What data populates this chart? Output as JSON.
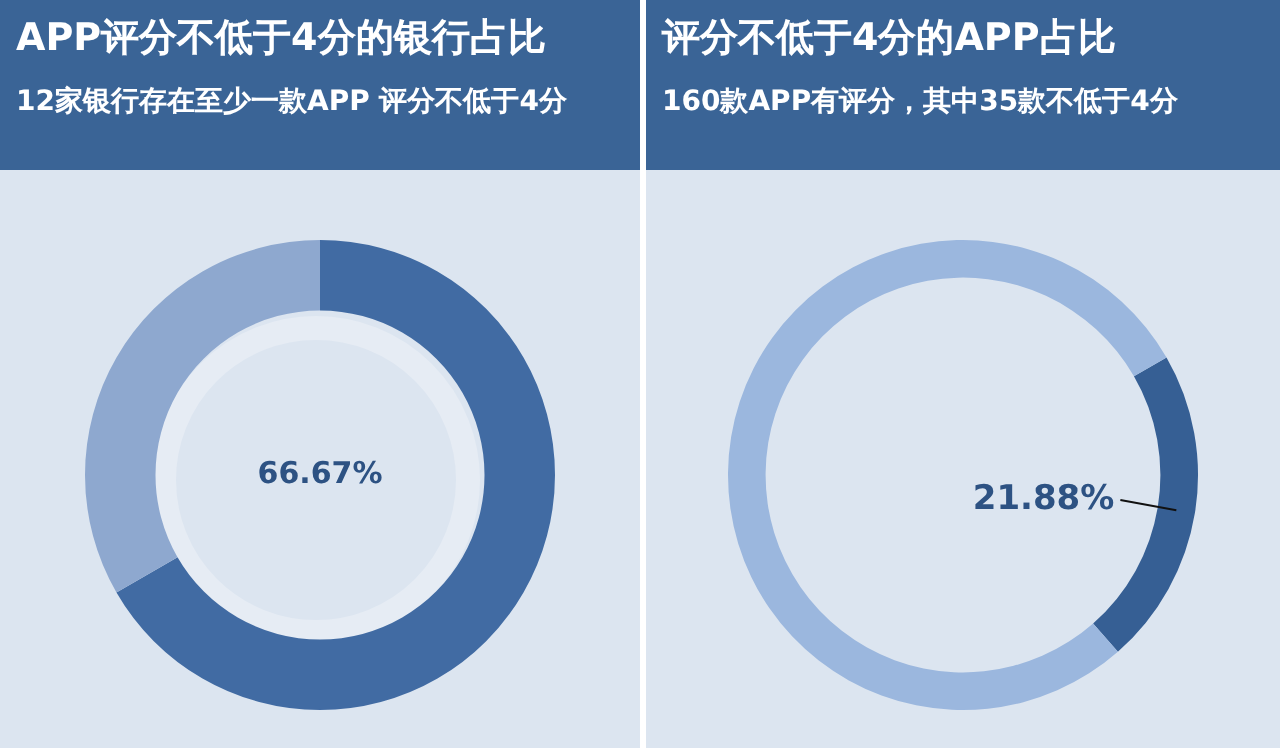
{
  "chart_data": [
    {
      "type": "donut",
      "title": "APP评分不低于4分的银行占比",
      "subtitle": "12家银行存在至少一款APP 评分不低于4分",
      "categories": [
        null,
        null
      ],
      "values": [
        66.67,
        33.33
      ],
      "colors": [
        "#416ba3",
        "#8ea8cf"
      ],
      "value_labels": [
        "66.67%",
        null
      ],
      "legend": false
    },
    {
      "type": "donut",
      "title": "评分不低于4分的APP占比",
      "subtitle": "160款APP有评分，其中35款不低于4分",
      "categories": [
        null,
        null
      ],
      "values": [
        21.88,
        78.12
      ],
      "colors": [
        "#365f94",
        "#9bb7de"
      ],
      "value_labels": [
        "21.88%",
        null
      ],
      "legend": false
    }
  ]
}
